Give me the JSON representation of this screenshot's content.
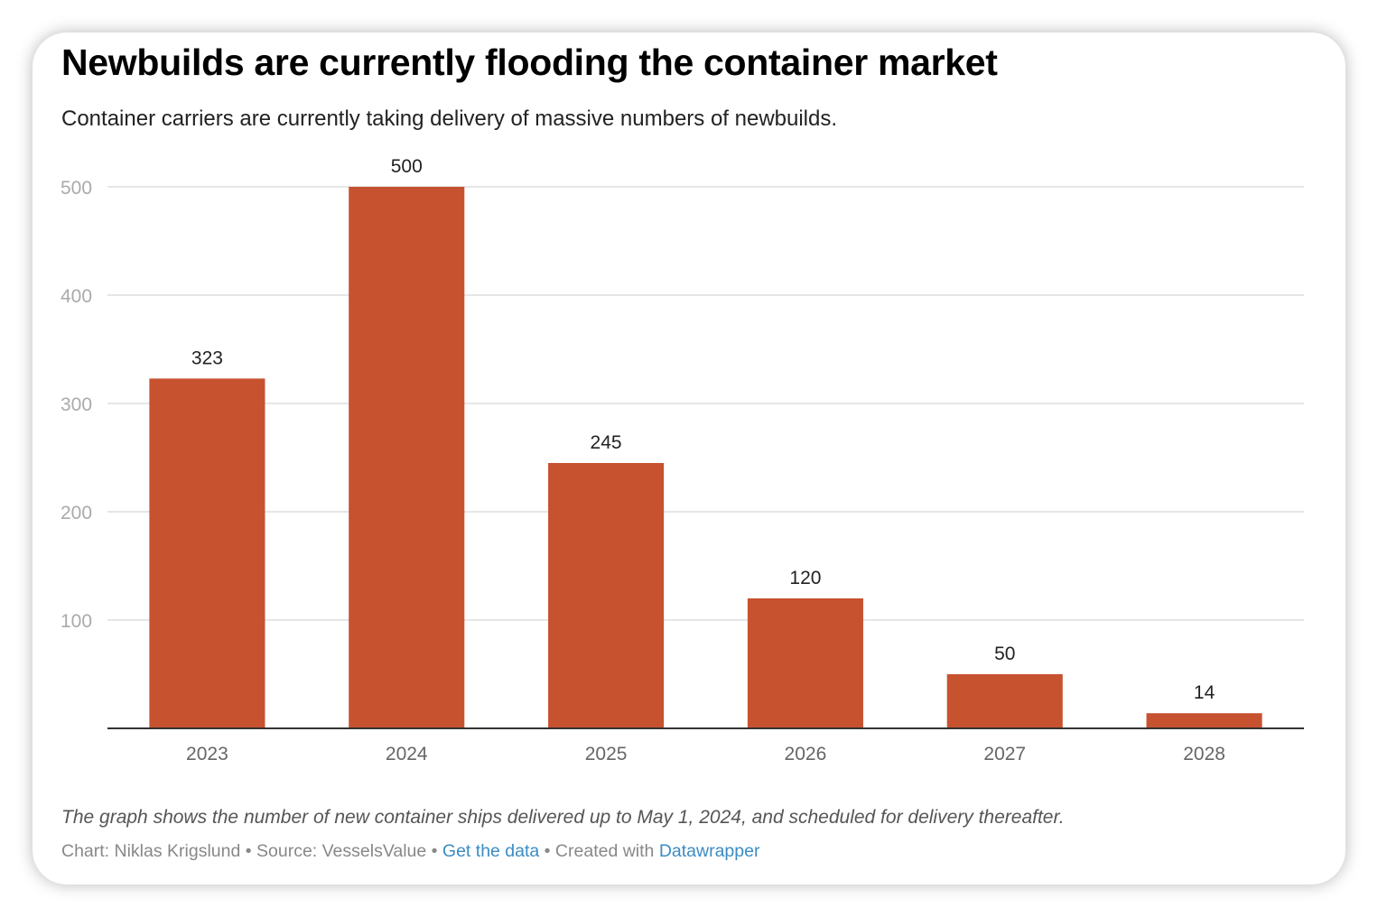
{
  "title": "Newbuilds are currently flooding the container market",
  "subtitle": "Container carriers are currently taking delivery of massive numbers of newbuilds.",
  "chart_data": {
    "type": "bar",
    "categories": [
      "2023",
      "2024",
      "2025",
      "2026",
      "2027",
      "2028"
    ],
    "values": [
      323,
      500,
      245,
      120,
      50,
      14
    ],
    "data_labels": [
      "323",
      "500",
      "245",
      "120",
      "50",
      "14"
    ],
    "yticks": [
      100,
      200,
      300,
      400,
      500
    ],
    "ylim": [
      0,
      500
    ],
    "grid": true,
    "xlabel": "",
    "ylabel": "",
    "bar_color": "#c75230"
  },
  "notes": "The graph shows the number of new container ships delivered up to May 1, 2024, and scheduled for delivery thereafter.",
  "footer": {
    "chart_credit": "Chart: Niklas Krigslund",
    "separator": "•",
    "source": "Source: VesselsValue",
    "get_data": "Get the data",
    "created_with": "Created with",
    "datawrapper": "Datawrapper"
  },
  "colors": {
    "bar": "#c75230",
    "gridline": "#e6e6e6",
    "tick_label": "#aaaaaa",
    "category_label": "#666666",
    "link": "#3b8cc4"
  }
}
